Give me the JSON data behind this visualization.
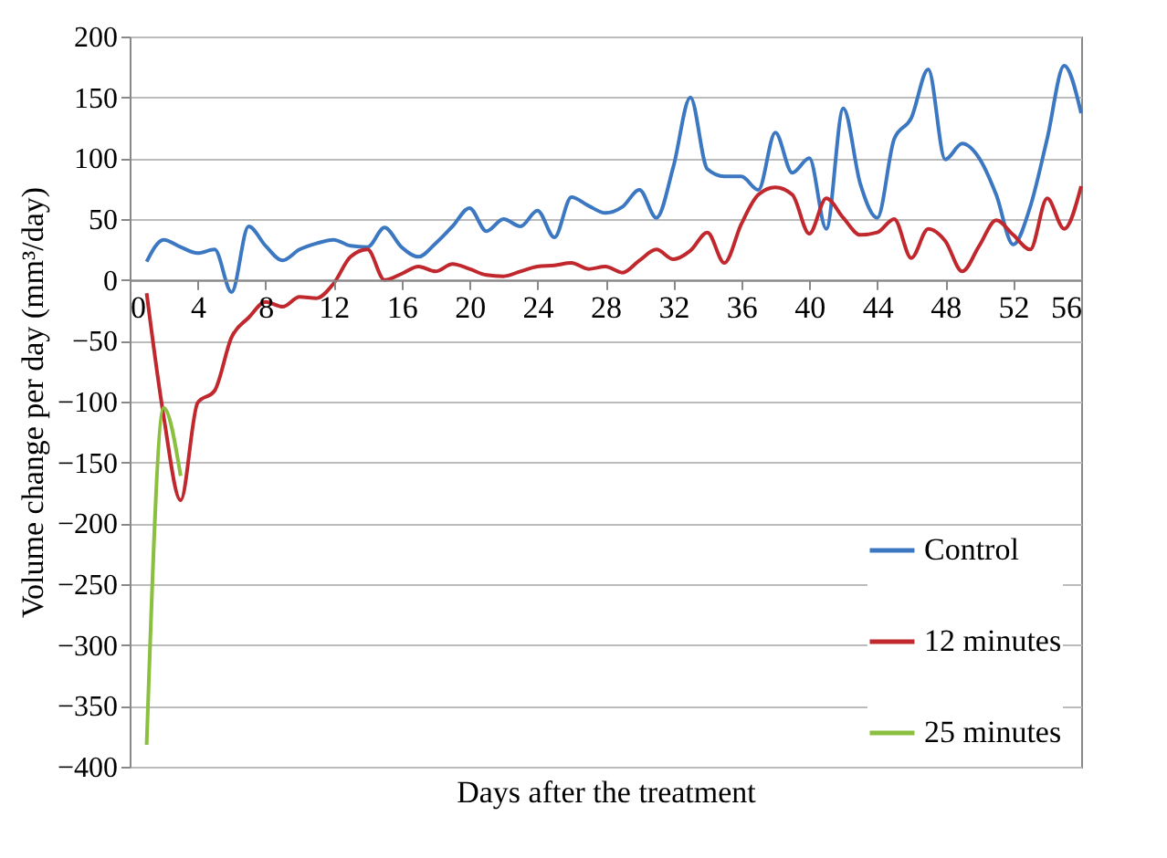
{
  "chart_data": {
    "type": "line",
    "xlabel": "Days after the treatment",
    "ylabel": "Volume change per day (mm³/day)",
    "x": [
      1,
      2,
      3,
      4,
      5,
      6,
      7,
      8,
      9,
      10,
      11,
      12,
      13,
      14,
      15,
      16,
      17,
      18,
      19,
      20,
      21,
      22,
      23,
      24,
      25,
      26,
      27,
      28,
      29,
      30,
      31,
      32,
      33,
      34,
      35,
      36,
      37,
      38,
      39,
      40,
      41,
      42,
      43,
      44,
      45,
      46,
      47,
      48,
      49,
      50,
      51,
      52,
      53,
      54,
      55,
      56
    ],
    "xlim": [
      0,
      56
    ],
    "xticks": [
      0,
      4,
      8,
      12,
      16,
      20,
      24,
      28,
      32,
      36,
      40,
      44,
      48,
      52,
      56
    ],
    "ylim": [
      -400,
      200
    ],
    "yticks": [
      -400,
      -350,
      -300,
      -250,
      -200,
      -150,
      -100,
      -50,
      0,
      50,
      100,
      150,
      200
    ],
    "grid": "y",
    "legend": "bottom right",
    "marker": "none",
    "line_style": "solid",
    "series": [
      {
        "name": "Control",
        "color": "#3c78c2",
        "values": [
          15,
          33,
          27,
          22,
          25,
          -10,
          44,
          28,
          16,
          25,
          30,
          33,
          28,
          27,
          43,
          27,
          19,
          30,
          44,
          59,
          40,
          50,
          44,
          57,
          35,
          68,
          61,
          55,
          60,
          74,
          51,
          93,
          150,
          91,
          85,
          85,
          74,
          121,
          88,
          100,
          42,
          141,
          79,
          51,
          116,
          133,
          173,
          99,
          112,
          100,
          70,
          29,
          60,
          116,
          176,
          137
        ]
      },
      {
        "name": "12 minutes",
        "color": "#c0282d",
        "values": [
          -11,
          -112,
          -181,
          -101,
          -91,
          -47,
          -31,
          -18,
          -22,
          -14,
          -15,
          -3,
          19,
          25,
          0,
          5,
          11,
          7,
          13,
          9,
          4,
          3,
          7,
          11,
          12,
          14,
          9,
          11,
          6,
          16,
          25,
          17,
          24,
          39,
          14,
          46,
          70,
          76,
          70,
          38,
          67,
          51,
          37,
          39,
          50,
          18,
          42,
          32,
          7,
          28,
          49,
          37,
          25,
          67,
          42,
          77
        ]
      },
      {
        "name": "25 minutes",
        "color": "#8bbf3f",
        "x": [
          1,
          2,
          3
        ],
        "values": [
          -382,
          -105,
          -161
        ]
      }
    ]
  }
}
